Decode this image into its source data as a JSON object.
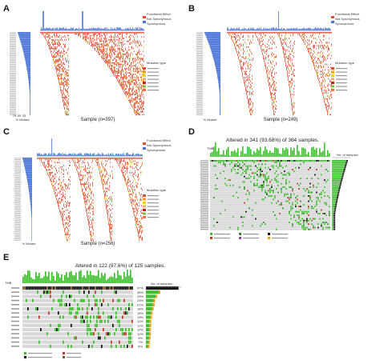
{
  "chart_data": [
    {
      "panel": "A",
      "type": "heatmap",
      "xlabel": "Sample (n=397)",
      "left_axis_label": "% Mutant",
      "legend_top": {
        "title": "Functional Effect",
        "items": [
          {
            "label": "Not Synonymous",
            "color": "#e34a33"
          },
          {
            "label": "Synonymous",
            "color": "#4a74d8"
          }
        ]
      },
      "legend_right": {
        "title": "Mutation type"
      },
      "tick_labels_y": [
        "25",
        "50",
        "75"
      ]
    },
    {
      "panel": "B",
      "type": "heatmap",
      "xlabel": "Sample (n=249)",
      "left_axis_label": "% Mutant",
      "legend_top": {
        "title": "Functional Effect",
        "items": [
          {
            "label": "Not Synonymous",
            "color": "#e34a33"
          },
          {
            "label": "Synonymous",
            "color": "#4a74d8"
          }
        ]
      },
      "legend_right": {
        "title": "Mutation type"
      }
    },
    {
      "panel": "C",
      "type": "heatmap",
      "xlabel": "Sample (n=256)",
      "left_axis_label": "% Mutant",
      "legend_top": {
        "title": "Functional Effect",
        "items": [
          {
            "label": "Not Synonymous",
            "color": "#e34a33"
          },
          {
            "label": "Synonymous",
            "color": "#4a74d8"
          }
        ]
      },
      "legend_right": {
        "title": "Mutation type"
      }
    },
    {
      "panel": "D",
      "type": "heatmap",
      "title": "Altered in 341 (93.68%) of 364 samples.",
      "legend_right_title": "No. of samples",
      "left_axis_label": "TMB"
    },
    {
      "panel": "E",
      "type": "heatmap",
      "title": "Altered in 122 (97.6%) of 125 samples.",
      "legend_right_title": "No. of samples",
      "left_axis_label": "TMB",
      "row_percentages": [
        "97%",
        "38%",
        "29%",
        "23%",
        "21%",
        "18%",
        "15%",
        "13%",
        "11%",
        "11%",
        "10%",
        "10%",
        "9%",
        "7%",
        "6%"
      ]
    }
  ],
  "colors": {
    "mutation": "#e34a33",
    "synonymous": "#4a74d8",
    "grey_bg": "#d8d8d8",
    "green": "#3fbf2f",
    "black": "#111111",
    "orange": "#f39c12"
  }
}
